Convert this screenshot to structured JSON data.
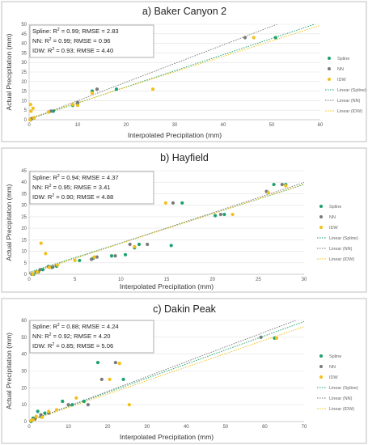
{
  "colors": {
    "spline": "#1aa36b",
    "nn": "#7a7a7a",
    "idw": "#f2c019"
  },
  "chart_data": [
    {
      "type": "scatter",
      "title": "a) Baker Canyon 2",
      "xlabel": "Interpolated Precipitation (mm)",
      "ylabel": "Actual Precipitation (mm)",
      "xlim": [
        0,
        60
      ],
      "ylim": [
        0,
        50
      ],
      "xticks": [
        "0",
        "10",
        "20",
        "30",
        "40",
        "50",
        "60"
      ],
      "yticks": [
        "0",
        "5",
        "10",
        "15",
        "20",
        "25",
        "30",
        "35",
        "40",
        "45",
        "50"
      ],
      "stats": [
        {
          "method": "Spline",
          "r2": "0.99",
          "rmse": "2.83"
        },
        {
          "method": "NN",
          "r2": "0.99",
          "rmse": "0.96"
        },
        {
          "method": "IDW",
          "r2": "0.93",
          "rmse": "4.40"
        }
      ],
      "legend": [
        "Spline",
        "NN",
        "IDW",
        "Linear (Spline)",
        "Linear (NN)",
        "Linear (IDW)"
      ],
      "series": [
        {
          "name": "Spline",
          "points": [
            [
              0.3,
              0
            ],
            [
              0.5,
              0.5
            ],
            [
              1,
              1
            ],
            [
              4,
              4
            ],
            [
              5,
              4.5
            ],
            [
              9,
              7.5
            ],
            [
              10,
              8.5
            ],
            [
              13,
              15
            ],
            [
              18,
              16
            ],
            [
              50.8,
              43
            ]
          ]
        },
        {
          "name": "NN",
          "points": [
            [
              0.2,
              0
            ],
            [
              0.5,
              0.5
            ],
            [
              1,
              1
            ],
            [
              4.5,
              4.5
            ],
            [
              9,
              8
            ],
            [
              10,
              9
            ],
            [
              14,
              16
            ],
            [
              44.5,
              43
            ]
          ]
        },
        {
          "name": "IDW",
          "points": [
            [
              0.2,
              0
            ],
            [
              0.3,
              8
            ],
            [
              0.8,
              6
            ],
            [
              0.4,
              4.5
            ],
            [
              1,
              1
            ],
            [
              4,
              4
            ],
            [
              9,
              8
            ],
            [
              10,
              7.5
            ],
            [
              13,
              14
            ],
            [
              25.5,
              16
            ],
            [
              46.3,
              43
            ]
          ]
        }
      ],
      "fits": [
        {
          "name": "Linear (Spline)",
          "slope": 0.845,
          "intercept": 0.3
        },
        {
          "name": "Linear (NN)",
          "slope": 0.975,
          "intercept": 0.2
        },
        {
          "name": "Linear (IDW)",
          "slope": 0.81,
          "intercept": 0.8
        }
      ]
    },
    {
      "type": "scatter",
      "title": "b) Hayfield",
      "xlabel": "Interpolated Precipitation (mm)",
      "ylabel": "Actual Precipitation (mm)",
      "xlim": [
        0,
        30
      ],
      "ylim": [
        0,
        45
      ],
      "xticks": [
        "0",
        "5",
        "10",
        "15",
        "20",
        "25",
        "30"
      ],
      "yticks": [
        "0",
        "5",
        "10",
        "15",
        "20",
        "25",
        "30",
        "35",
        "40",
        "45"
      ],
      "stats": [
        {
          "method": "Spline",
          "r2": "0.94",
          "rmse": "4.37"
        },
        {
          "method": "NN",
          "r2": "0.95",
          "rmse": "3.41"
        },
        {
          "method": "IDW",
          "r2": "0.90",
          "rmse": "4.88"
        }
      ],
      "legend": [
        "Spline",
        "NN",
        "IDW",
        "Linear (Spline)",
        "Linear (NN)",
        "Linear (IDW)"
      ],
      "series": [
        {
          "name": "Spline",
          "points": [
            [
              0.5,
              0
            ],
            [
              1,
              1
            ],
            [
              1.5,
              2
            ],
            [
              2.5,
              3
            ],
            [
              3,
              3.5
            ],
            [
              5.5,
              6
            ],
            [
              7,
              7
            ],
            [
              9,
              8
            ],
            [
              10.5,
              8.5
            ],
            [
              11.5,
              11.5
            ],
            [
              12,
              13
            ],
            [
              15.5,
              12.5
            ],
            [
              16.7,
              31
            ],
            [
              20.3,
              25.5
            ],
            [
              21.3,
              26
            ],
            [
              26.7,
              39
            ],
            [
              28,
              39
            ]
          ]
        },
        {
          "name": "NN",
          "points": [
            [
              0.3,
              0
            ],
            [
              0.8,
              1
            ],
            [
              1.2,
              2
            ],
            [
              2.1,
              3.4
            ],
            [
              2.6,
              3.2
            ],
            [
              6.8,
              6.5
            ],
            [
              7.4,
              7.5
            ],
            [
              9.4,
              8
            ],
            [
              11,
              13
            ],
            [
              12.9,
              13
            ],
            [
              15.7,
              31
            ],
            [
              20.9,
              26
            ],
            [
              25.9,
              36
            ],
            [
              27.6,
              39
            ]
          ]
        },
        {
          "name": "IDW",
          "points": [
            [
              0.4,
              0
            ],
            [
              0.9,
              1
            ],
            [
              1.3,
              13.5
            ],
            [
              1.8,
              9
            ],
            [
              2.2,
              3
            ],
            [
              3.1,
              4
            ],
            [
              5,
              6
            ],
            [
              7.1,
              7.5
            ],
            [
              11.5,
              12
            ],
            [
              14.9,
              31
            ],
            [
              22.2,
              26
            ],
            [
              26.1,
              35.5
            ],
            [
              28,
              38.5
            ]
          ]
        }
      ],
      "fits": [
        {
          "name": "Linear (Spline)",
          "slope": 1.27,
          "intercept": 0.9
        },
        {
          "name": "Linear (NN)",
          "slope": 1.32,
          "intercept": 0.3
        },
        {
          "name": "Linear (IDW)",
          "slope": 1.29,
          "intercept": 0.5
        }
      ]
    },
    {
      "type": "scatter",
      "title": "c) Dakin Peak",
      "xlabel": "Interpolated Precipitation (mm)",
      "ylabel": "Actual Precipitation (mm)",
      "xlim": [
        0,
        70
      ],
      "ylim": [
        0,
        60
      ],
      "xticks": [
        "0",
        "10",
        "20",
        "30",
        "40",
        "50",
        "60",
        "70"
      ],
      "yticks": [
        "0",
        "10",
        "20",
        "30",
        "40",
        "50",
        "60"
      ],
      "stats": [
        {
          "method": "Spline",
          "r2": "0.88",
          "rmse": "4.24"
        },
        {
          "method": "NN",
          "r2": "0.92",
          "rmse": "4.20"
        },
        {
          "method": "IDW",
          "r2": "0.85",
          "rmse": "5.06"
        }
      ],
      "legend": [
        "Spline",
        "NN",
        "IDW",
        "Linear (Spline)",
        "Linear (NN)",
        "Linear (IDW)"
      ],
      "series": [
        {
          "name": "Spline",
          "points": [
            [
              0.5,
              0
            ],
            [
              1,
              2
            ],
            [
              2.2,
              6
            ],
            [
              3,
              3
            ],
            [
              4,
              5
            ],
            [
              8.5,
              12
            ],
            [
              11,
              10
            ],
            [
              14,
              12
            ],
            [
              17.5,
              35
            ],
            [
              24,
              25
            ],
            [
              62.5,
              49.5
            ]
          ]
        },
        {
          "name": "NN",
          "points": [
            [
              0.5,
              0.5
            ],
            [
              1.5,
              1.5
            ],
            [
              3,
              4
            ],
            [
              5,
              5
            ],
            [
              10,
              10
            ],
            [
              15,
              10
            ],
            [
              18.5,
              25
            ],
            [
              22,
              35
            ],
            [
              59,
              50
            ]
          ]
        },
        {
          "name": "IDW",
          "points": [
            [
              0.5,
              0.5
            ],
            [
              1,
              1
            ],
            [
              1.8,
              3
            ],
            [
              3.3,
              2.5
            ],
            [
              5,
              6
            ],
            [
              7,
              7
            ],
            [
              12,
              14
            ],
            [
              20.5,
              25
            ],
            [
              23,
              34.5
            ],
            [
              25.5,
              10
            ],
            [
              63,
              49.5
            ]
          ]
        }
      ],
      "fits": [
        {
          "name": "Linear (Spline)",
          "slope": 0.84,
          "intercept": 0.5
        },
        {
          "name": "Linear (NN)",
          "slope": 0.88,
          "intercept": 0.3
        },
        {
          "name": "Linear (IDW)",
          "slope": 0.8,
          "intercept": 0.3
        }
      ]
    }
  ]
}
